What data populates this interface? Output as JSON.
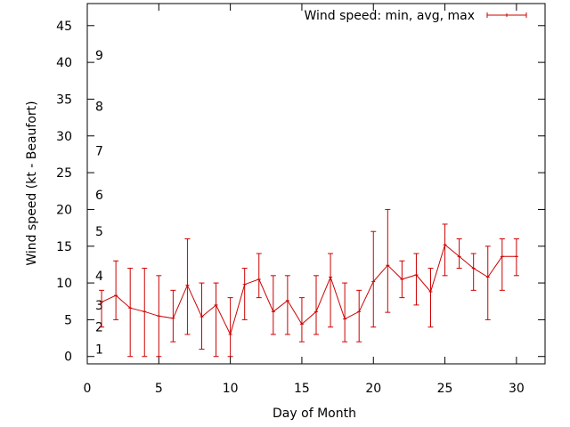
{
  "chart_data": {
    "type": "line",
    "title": "",
    "xlabel": "Day of Month",
    "ylabel": "Wind speed (kt - Beaufort)",
    "xlim": [
      0,
      32
    ],
    "ylim": [
      -1,
      48
    ],
    "x_ticks": [
      0,
      5,
      10,
      15,
      20,
      25,
      30
    ],
    "y_ticks": [
      0,
      5,
      10,
      15,
      20,
      25,
      30,
      35,
      40,
      45
    ],
    "grid": false,
    "legend_position": "top-right",
    "beaufort_labels": [
      {
        "label": "1",
        "y": 1
      },
      {
        "label": "2",
        "y": 4
      },
      {
        "label": "3",
        "y": 7
      },
      {
        "label": "4",
        "y": 11
      },
      {
        "label": "5",
        "y": 17
      },
      {
        "label": "6",
        "y": 22
      },
      {
        "label": "7",
        "y": 28
      },
      {
        "label": "8",
        "y": 34
      },
      {
        "label": "9",
        "y": 41
      }
    ],
    "series": [
      {
        "name": "Wind speed: min, avg, max",
        "color": "#cc0000",
        "points": [
          {
            "x": 1,
            "min": 4,
            "avg": 7.4,
            "max": 9
          },
          {
            "x": 2,
            "min": 5,
            "avg": 8.3,
            "max": 13
          },
          {
            "x": 3,
            "min": 0,
            "avg": 6.6,
            "max": 12
          },
          {
            "x": 4,
            "min": 0,
            "avg": 6.1,
            "max": 12
          },
          {
            "x": 5,
            "min": 0,
            "avg": 5.5,
            "max": 11
          },
          {
            "x": 6,
            "min": 2,
            "avg": 5.2,
            "max": 9
          },
          {
            "x": 7,
            "min": 3,
            "avg": 9.7,
            "max": 16
          },
          {
            "x": 8,
            "min": 1,
            "avg": 5.4,
            "max": 10
          },
          {
            "x": 9,
            "min": 0,
            "avg": 7.0,
            "max": 10
          },
          {
            "x": 10,
            "min": 0,
            "avg": 3.0,
            "max": 8
          },
          {
            "x": 11,
            "min": 5,
            "avg": 9.8,
            "max": 12
          },
          {
            "x": 12,
            "min": 8,
            "avg": 10.5,
            "max": 14
          },
          {
            "x": 13,
            "min": 3,
            "avg": 6.1,
            "max": 11
          },
          {
            "x": 14,
            "min": 3,
            "avg": 7.6,
            "max": 11
          },
          {
            "x": 15,
            "min": 2,
            "avg": 4.4,
            "max": 8
          },
          {
            "x": 16,
            "min": 3,
            "avg": 6.1,
            "max": 11
          },
          {
            "x": 17,
            "min": 4,
            "avg": 10.8,
            "max": 14
          },
          {
            "x": 18,
            "min": 2,
            "avg": 5.1,
            "max": 10
          },
          {
            "x": 19,
            "min": 2,
            "avg": 6.1,
            "max": 9
          },
          {
            "x": 20,
            "min": 4,
            "avg": 10.2,
            "max": 17
          },
          {
            "x": 21,
            "min": 6,
            "avg": 12.4,
            "max": 20
          },
          {
            "x": 22,
            "min": 8,
            "avg": 10.5,
            "max": 13
          },
          {
            "x": 23,
            "min": 7,
            "avg": 11.1,
            "max": 14
          },
          {
            "x": 24,
            "min": 4,
            "avg": 8.8,
            "max": 12
          },
          {
            "x": 25,
            "min": 11,
            "avg": 15.2,
            "max": 18
          },
          {
            "x": 26,
            "min": 12,
            "avg": 13.6,
            "max": 16
          },
          {
            "x": 27,
            "min": 9,
            "avg": 12.0,
            "max": 14
          },
          {
            "x": 28,
            "min": 5,
            "avg": 10.8,
            "max": 15
          },
          {
            "x": 29,
            "min": 9,
            "avg": 13.6,
            "max": 16
          },
          {
            "x": 30,
            "min": 11,
            "avg": 13.6,
            "max": 16
          }
        ]
      }
    ]
  }
}
